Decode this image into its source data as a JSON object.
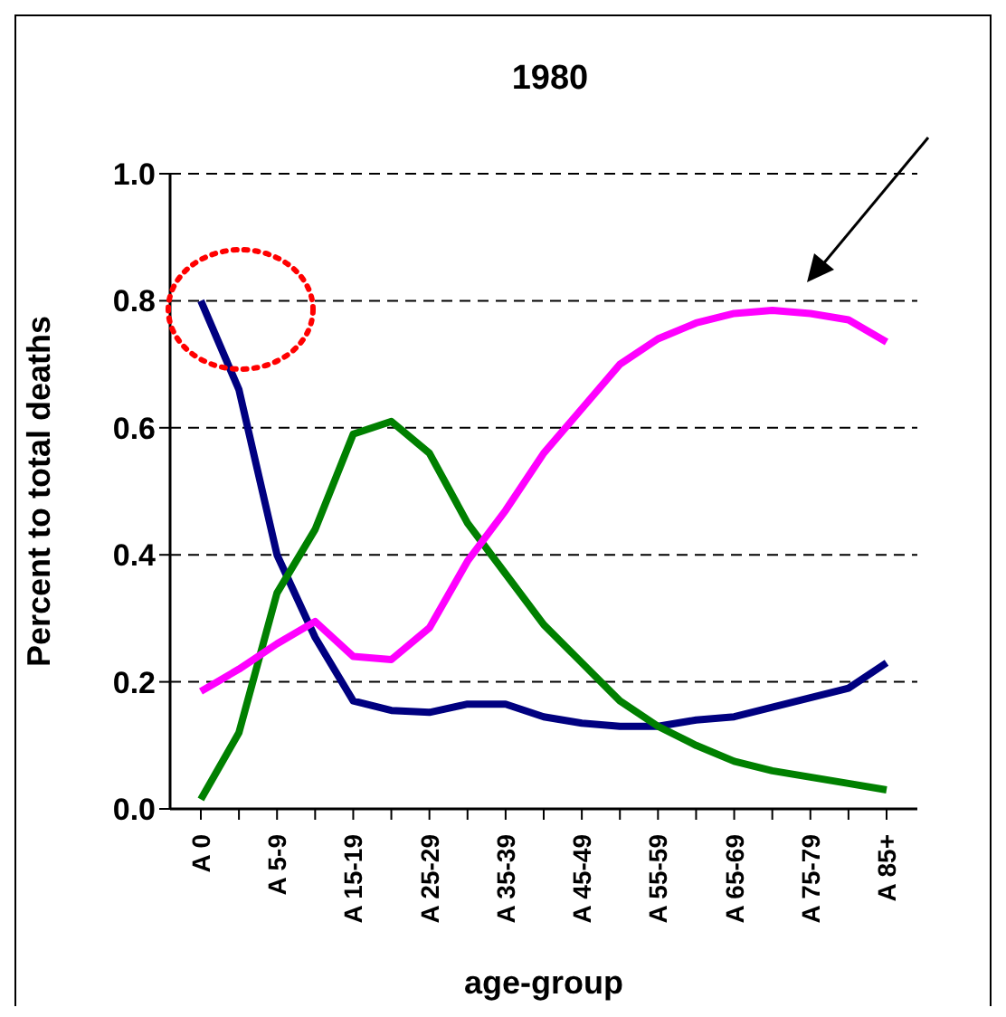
{
  "chart_data": {
    "type": "line",
    "title": "1980",
    "xlabel": "age-group",
    "ylabel": "Percent to total deaths",
    "categories": [
      "A 0",
      null,
      "A 5-9",
      null,
      "A 15-19",
      null,
      "A 25-29",
      null,
      "A 35-39",
      null,
      "A 45-49",
      null,
      "A 55-59",
      null,
      "A 65-69",
      null,
      "A 75-79",
      null,
      "A 85+"
    ],
    "series": [
      {
        "color": "#000080",
        "values": [
          0.8,
          0.66,
          0.4,
          0.27,
          0.17,
          0.155,
          0.152,
          0.165,
          0.165,
          0.145,
          0.135,
          0.13,
          0.13,
          0.14,
          0.145,
          0.16,
          0.175,
          0.19,
          0.23
        ]
      },
      {
        "color": "#008000",
        "values": [
          0.015,
          0.12,
          0.34,
          0.44,
          0.59,
          0.61,
          0.56,
          0.45,
          0.37,
          0.29,
          0.23,
          0.17,
          0.13,
          0.1,
          0.075,
          0.06,
          0.05,
          0.04,
          0.03
        ]
      },
      {
        "color": "#ff00ff",
        "values": [
          0.185,
          0.22,
          0.26,
          0.295,
          0.24,
          0.235,
          0.285,
          0.39,
          0.47,
          0.56,
          0.63,
          0.7,
          0.74,
          0.765,
          0.78,
          0.785,
          0.78,
          0.77,
          0.735
        ]
      }
    ],
    "ylim": [
      0,
      1
    ],
    "yticks": [
      {
        "value": 0,
        "label": "0.0"
      },
      0.2,
      0.4,
      0.6,
      0.8,
      {
        "value": 1,
        "label": "1.0"
      }
    ],
    "grid": "y",
    "line_style": "solid",
    "marker": "none"
  }
}
